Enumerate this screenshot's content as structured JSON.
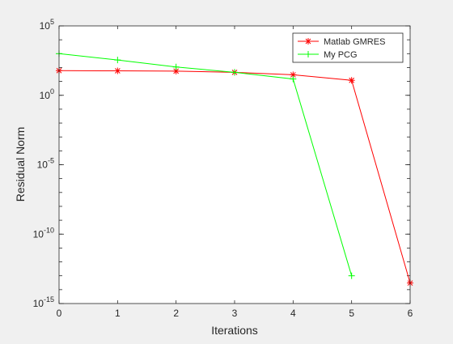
{
  "chart_data": {
    "type": "line",
    "xlabel": "Iterations",
    "ylabel": "Residual Norm",
    "xlim": [
      0,
      6
    ],
    "ylim": [
      1e-15,
      100000.0
    ],
    "yscale": "log",
    "xticks": [
      "0",
      "1",
      "2",
      "3",
      "4",
      "5",
      "6"
    ],
    "yticks": [
      {
        "base": "10",
        "exp": "5",
        "value": 100000.0
      },
      {
        "base": "10",
        "exp": "0",
        "value": 1
      },
      {
        "base": "10",
        "exp": "-5",
        "value": 1e-05
      },
      {
        "base": "10",
        "exp": "-10",
        "value": 1e-10
      },
      {
        "base": "10",
        "exp": "-15",
        "value": 1e-15
      }
    ],
    "grid": false,
    "legend_position": "top-right",
    "series": [
      {
        "name": "Matlab GMRES",
        "color": "#ff0000",
        "marker": "asterisk",
        "x": [
          0,
          1,
          2,
          3,
          4,
          5,
          6
        ],
        "y": [
          60,
          58,
          55,
          45,
          30,
          12,
          3e-14
        ]
      },
      {
        "name": "My PCG",
        "color": "#00ff00",
        "marker": "plus",
        "x": [
          0,
          1,
          2,
          3,
          4,
          5
        ],
        "y": [
          1000,
          350,
          110,
          45,
          15,
          1e-13
        ]
      }
    ]
  }
}
